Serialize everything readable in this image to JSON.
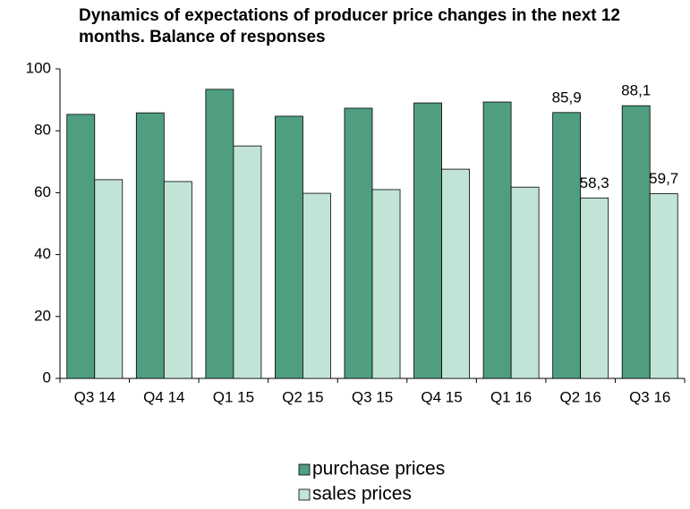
{
  "chart_data": {
    "type": "bar",
    "title": "Dynamics of expectations of producer price changes in the next 12 months. Balance of responses",
    "categories": [
      "Q3 14",
      "Q4 14",
      "Q1 15",
      "Q2 15",
      "Q3 15",
      "Q4 15",
      "Q1 16",
      "Q2 16",
      "Q3 16"
    ],
    "series": [
      {
        "name": "purchase prices",
        "color": "#4f9e80",
        "values": [
          85.3,
          85.8,
          93.4,
          84.7,
          87.3,
          89.0,
          89.3,
          85.9,
          88.1
        ],
        "value_labels": [
          null,
          null,
          null,
          null,
          null,
          null,
          null,
          "85,9",
          "88,1"
        ]
      },
      {
        "name": "sales prices",
        "color": "#c2e4d6",
        "values": [
          64.2,
          63.6,
          75.1,
          59.8,
          61.0,
          67.6,
          61.8,
          58.3,
          59.7
        ],
        "value_labels": [
          null,
          null,
          null,
          null,
          null,
          null,
          null,
          "58,3",
          "59,7"
        ]
      }
    ],
    "ylim": [
      0,
      100
    ],
    "yticks": [
      0,
      20,
      40,
      60,
      80,
      100
    ],
    "grid": false,
    "legend": "bottom"
  }
}
